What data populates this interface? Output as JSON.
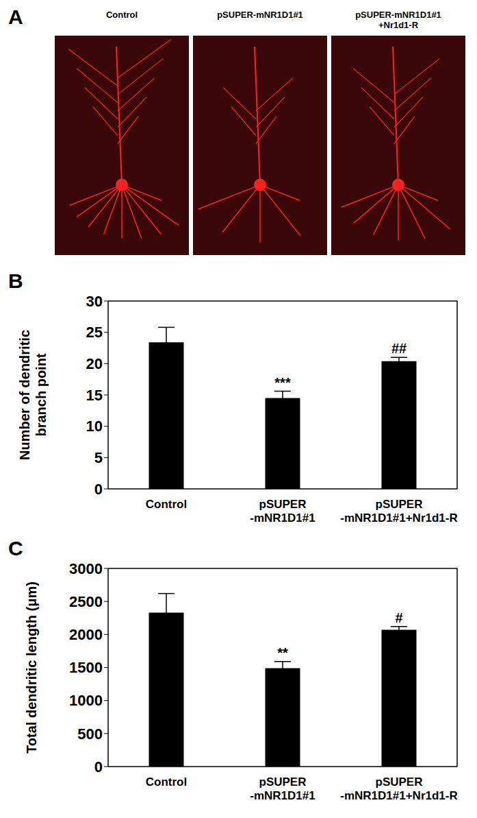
{
  "image_panel": {
    "label": "A",
    "captions": [
      "Control",
      "pSUPER-mNR1D1#1",
      "pSUPER-mNR1D1#1\n+Nr1d1-R"
    ]
  },
  "chart_data": [
    {
      "type": "bar",
      "panel_label": "B",
      "y_label": "Number of dendritic\nbranch point",
      "categories": [
        "Control",
        "pSUPER\n-mNR1D1#1",
        "pSUPER\n-mNR1D1#1+Nr1d1-R"
      ],
      "values": [
        23.4,
        14.5,
        20.4
      ],
      "errors": [
        2.4,
        1.1,
        0.6
      ],
      "color": "#000000",
      "ylim": [
        0,
        30
      ],
      "yticks": [
        0,
        5,
        10,
        15,
        20,
        25,
        30
      ],
      "annotations": [
        {
          "category": "pSUPER\n-mNR1D1#1",
          "text": "***"
        },
        {
          "category": "pSUPER\n-mNR1D1#1+Nr1d1-R",
          "text": "##"
        }
      ]
    },
    {
      "type": "bar",
      "panel_label": "C",
      "y_label": "Total  dendritic length (μm)",
      "categories": [
        "Control",
        "pSUPER\n-mNR1D1#1",
        "pSUPER\n-mNR1D1#1+Nr1d1-R"
      ],
      "values": [
        2330,
        1490,
        2070
      ],
      "errors": [
        290,
        100,
        50
      ],
      "color": "#000000",
      "ylim": [
        0,
        3000
      ],
      "yticks": [
        0,
        500,
        1000,
        1500,
        2000,
        2500,
        3000
      ],
      "annotations": [
        {
          "category": "pSUPER\n-mNR1D1#1",
          "text": "**"
        },
        {
          "category": "pSUPER\n-mNR1D1#1+Nr1d1-R",
          "text": "#"
        }
      ]
    }
  ]
}
